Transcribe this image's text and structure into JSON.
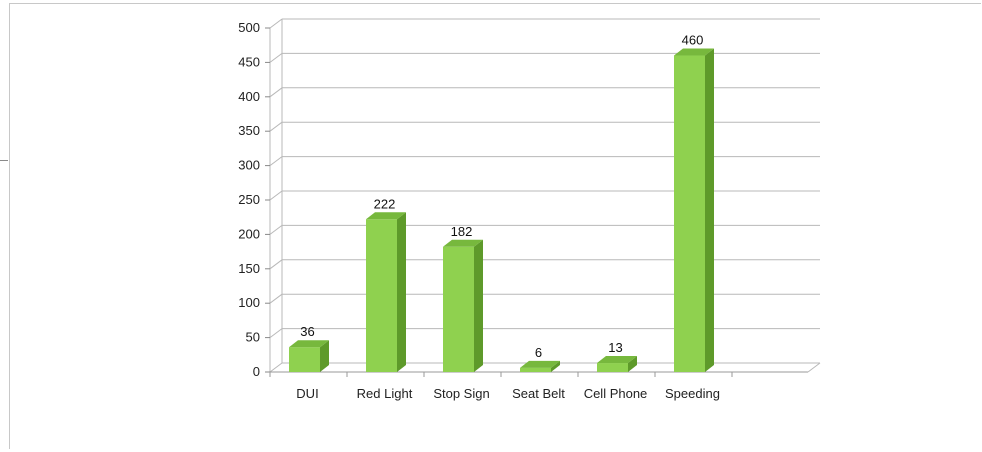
{
  "chart_data": {
    "type": "bar",
    "title": "",
    "xlabel": "",
    "ylabel": "",
    "categories": [
      "DUI",
      "Red Light",
      "Stop Sign",
      "Seat Belt",
      "Cell Phone",
      "Speeding"
    ],
    "values": [
      36,
      222,
      182,
      6,
      13,
      460
    ],
    "ylim": [
      0,
      500
    ],
    "yticks": [
      "0",
      "50",
      "100",
      "150",
      "200",
      "250",
      "300",
      "350",
      "400",
      "450",
      "500"
    ],
    "grid": true,
    "legend": "none",
    "colors": {
      "bar_front": "#8fd14f",
      "bar_side": "#5e9a2a",
      "bar_top": "#77b83d",
      "grid": "#b8b8b8"
    }
  }
}
